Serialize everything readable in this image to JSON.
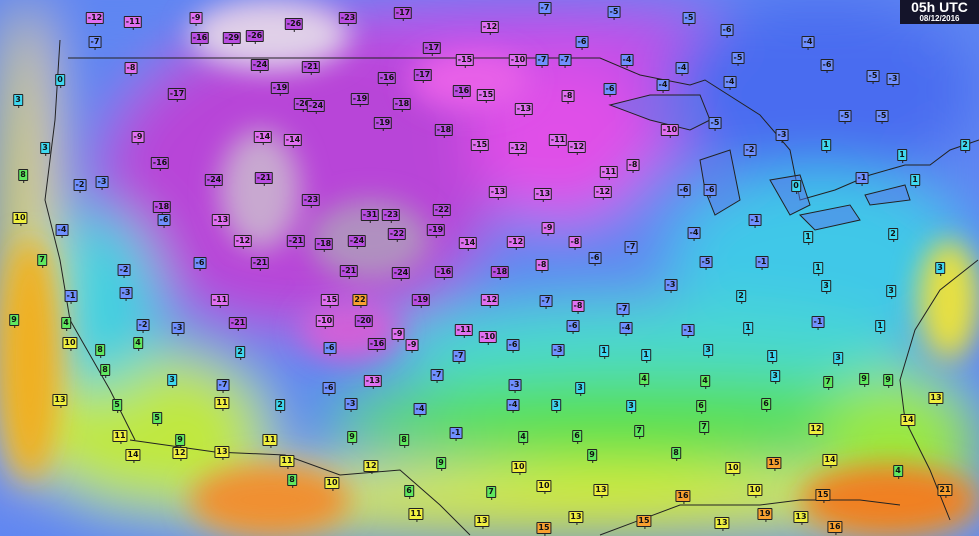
{
  "header": {
    "time_label": "05h UTC",
    "date_label": "08/12/2016"
  },
  "colors": {
    "very_cold": "#b84ee0",
    "cold": "#e070f0",
    "cool": "#7090ff",
    "near_zero": "#40d8f0",
    "mild": "#60e860",
    "warm": "#f0f040",
    "hot": "#f8a030",
    "ocean_west": "#f0e020",
    "gulf": "#f08020"
  },
  "stations": [
    -12,
    -11,
    -9,
    -29,
    -26,
    -26,
    -23,
    -17,
    -12,
    -7,
    -5,
    -5,
    -6,
    -7,
    -16,
    -24,
    -21,
    -17,
    -15,
    -10,
    -7,
    -7,
    -6,
    -4,
    -4,
    -5,
    -4,
    -6,
    -5,
    -3,
    -8,
    -17,
    -19,
    -20,
    -24,
    -19,
    -16,
    -18,
    -17,
    -16,
    -15,
    -13,
    -8,
    -6,
    -4,
    -4,
    -5,
    -5,
    0,
    3,
    3,
    -9,
    -16,
    -24,
    -14,
    -14,
    -19,
    -18,
    -15,
    -12,
    -11,
    -12,
    -11,
    -8,
    -10,
    -5,
    -2,
    -3,
    1,
    1,
    2,
    8,
    -2,
    -3,
    -18,
    -13,
    -21,
    -23,
    -31,
    -23,
    -22,
    -13,
    -13,
    -12,
    -6,
    -6,
    0,
    -1,
    1,
    10,
    -4,
    -6,
    -12,
    -21,
    -18,
    -24,
    -22,
    -19,
    -14,
    -12,
    -9,
    -8,
    -7,
    -4,
    -1,
    1,
    2,
    7,
    -2,
    -6,
    -21,
    -21,
    -24,
    -16,
    -18,
    -8,
    -6,
    -5,
    -1,
    1,
    3,
    -1,
    -3,
    -11,
    -15,
    22,
    -19,
    -12,
    -7,
    -8,
    -7,
    -3,
    2,
    3,
    3,
    9,
    4,
    -2,
    -3,
    -21,
    -10,
    -20,
    -9,
    -11,
    -10,
    -6,
    -4,
    -1,
    1,
    -1,
    1,
    10,
    8,
    4,
    2,
    -6,
    -16,
    -9,
    -7,
    -6,
    -3,
    1,
    1,
    3,
    1,
    3,
    8,
    3,
    -7,
    -6,
    -13,
    -7,
    -3,
    3,
    4,
    4,
    3,
    9,
    13,
    5,
    5,
    11,
    2,
    -3,
    -4,
    -4,
    3,
    3,
    6,
    6,
    7,
    9,
    13,
    11,
    9,
    11,
    9,
    8,
    -1,
    4,
    6,
    7,
    7,
    12,
    14,
    14,
    12,
    13,
    11,
    12,
    9,
    10,
    9,
    8,
    10,
    15,
    14,
    4,
    8,
    10,
    6,
    7,
    10,
    13,
    16,
    10,
    15,
    21,
    11,
    13,
    15,
    13,
    15,
    13,
    19,
    13,
    16
  ]
}
